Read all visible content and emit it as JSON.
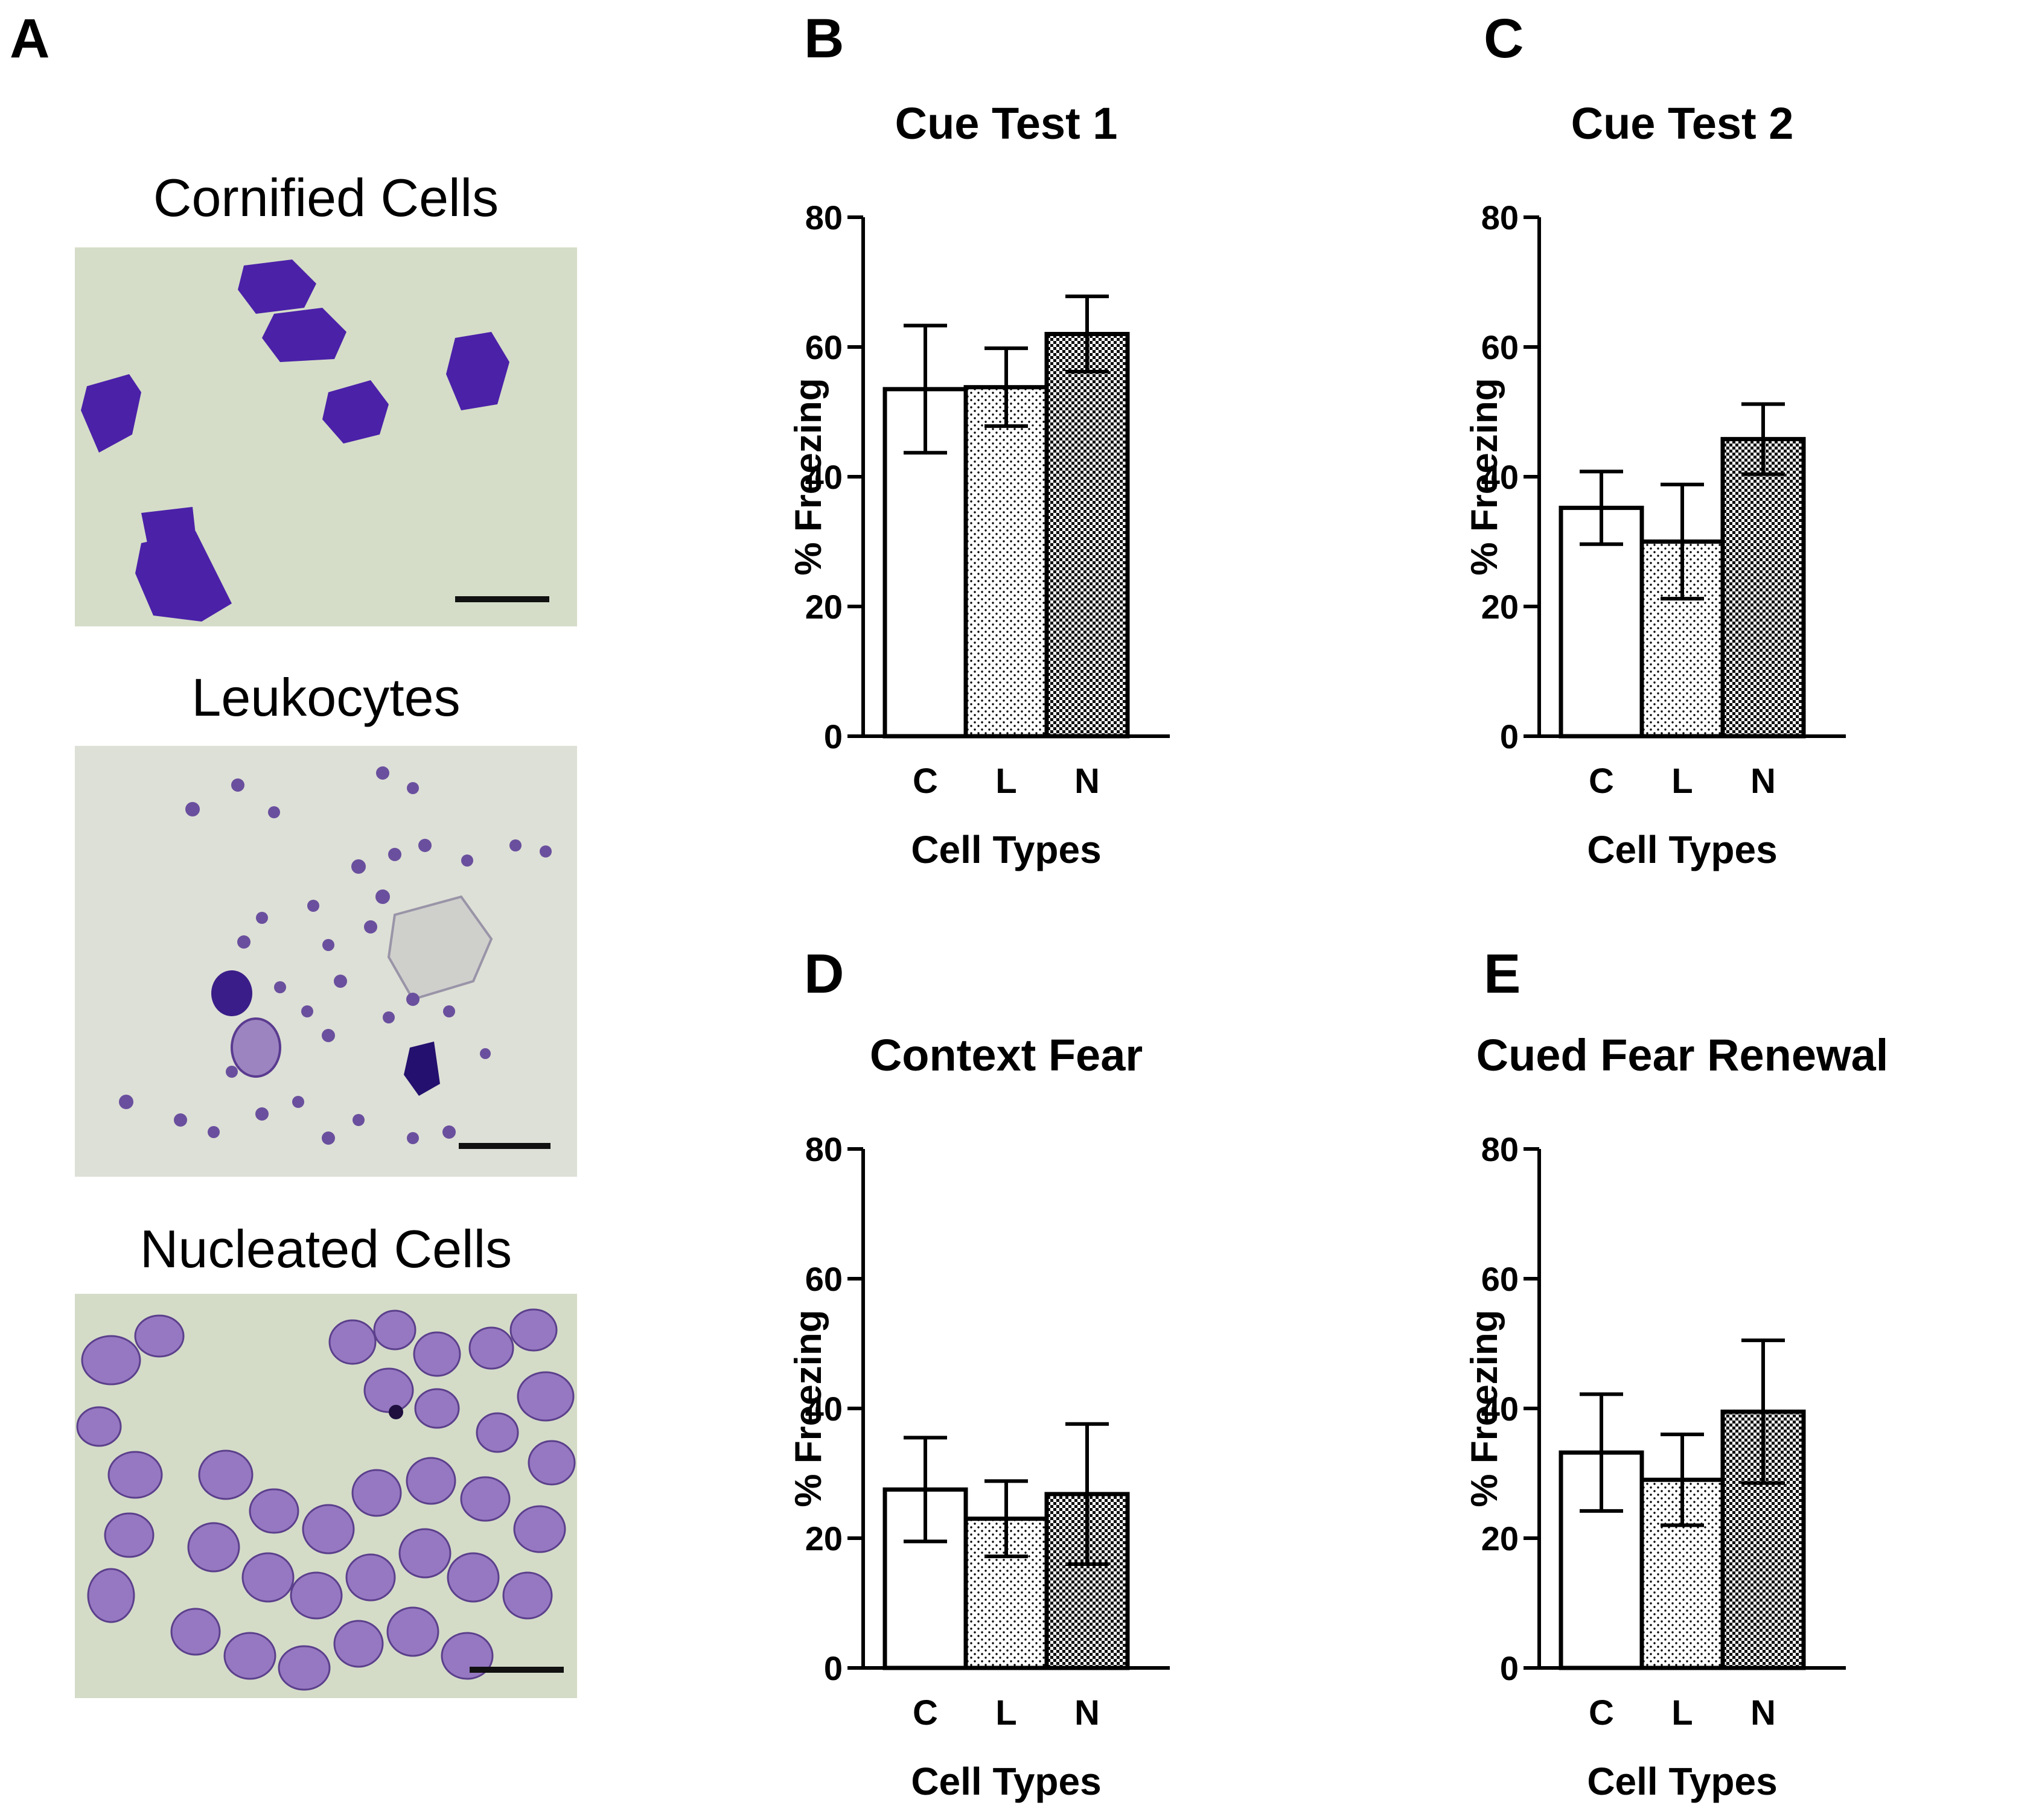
{
  "panels": {
    "a": {
      "letter": "A"
    },
    "b": {
      "letter": "B"
    },
    "c": {
      "letter": "C"
    },
    "d": {
      "letter": "D"
    },
    "e": {
      "letter": "E"
    }
  },
  "micrographs": [
    {
      "title": "Cornified Cells",
      "background": "#d5ddc8",
      "stain": "#4b21a8"
    },
    {
      "title": "Leukocytes",
      "background": "#dde0d6",
      "stain": "#6a4f9e"
    },
    {
      "title": "Nucleated Cells",
      "background": "#d4dcc8",
      "stain": "#8a66c0"
    }
  ],
  "chart_data": [
    {
      "type": "bar",
      "panel": "B",
      "title": "Cue Test 1",
      "xlabel": "Cell Types",
      "ylabel": "% Freezing",
      "categories": [
        "C",
        "L",
        "N"
      ],
      "values": [
        53.5,
        53.8,
        62.0
      ],
      "errors": [
        9.8,
        6.0,
        5.8
      ],
      "ylim": [
        0,
        80
      ],
      "yticks": [
        0,
        20,
        40,
        60,
        80
      ],
      "patterns": [
        "open",
        "dotted",
        "checkered"
      ]
    },
    {
      "type": "bar",
      "panel": "C",
      "title": "Cue Test 2",
      "xlabel": "Cell Types",
      "ylabel": "% Freezing",
      "categories": [
        "C",
        "L",
        "N"
      ],
      "values": [
        35.2,
        30.0,
        45.8
      ],
      "errors": [
        5.6,
        8.8,
        5.4
      ],
      "ylim": [
        0,
        80
      ],
      "yticks": [
        0,
        20,
        40,
        60,
        80
      ],
      "patterns": [
        "open",
        "dotted",
        "checkered"
      ]
    },
    {
      "type": "bar",
      "panel": "D",
      "title": "Context Fear",
      "xlabel": "Cell Types",
      "ylabel": "% Freezing",
      "categories": [
        "C",
        "L",
        "N"
      ],
      "values": [
        27.5,
        23.0,
        26.8
      ],
      "errors": [
        8.0,
        5.8,
        10.8
      ],
      "ylim": [
        0,
        80
      ],
      "yticks": [
        0,
        20,
        40,
        60,
        80
      ],
      "patterns": [
        "open",
        "dotted",
        "checkered"
      ]
    },
    {
      "type": "bar",
      "panel": "E",
      "title": "Cued Fear Renewal",
      "xlabel": "Cell Types",
      "ylabel": "% Freezing",
      "categories": [
        "C",
        "L",
        "N"
      ],
      "values": [
        33.2,
        29.0,
        39.5
      ],
      "errors": [
        9.0,
        7.0,
        11.0
      ],
      "ylim": [
        0,
        80
      ],
      "yticks": [
        0,
        20,
        40,
        60,
        80
      ],
      "patterns": [
        "open",
        "dotted",
        "checkered"
      ]
    }
  ]
}
